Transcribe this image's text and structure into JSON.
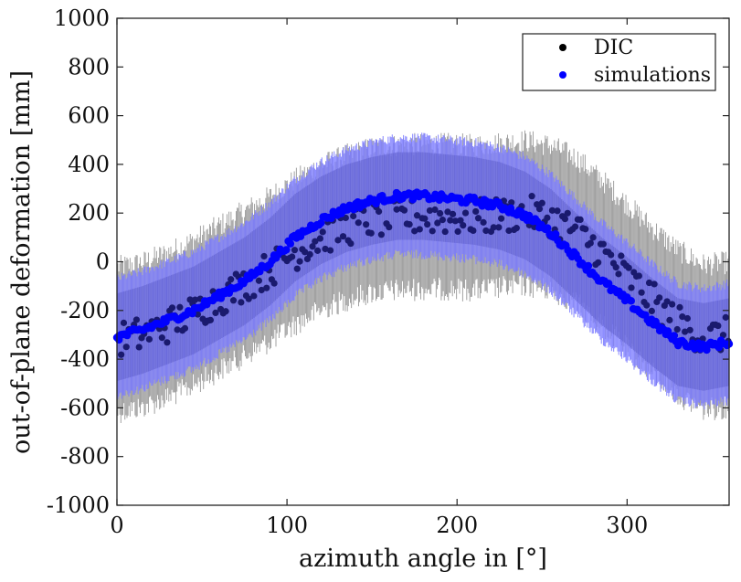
{
  "chart_data": {
    "type": "scatter",
    "title": "",
    "xlabel": "azimuth angle in [°]",
    "ylabel": "out-of-plane deformation [mm]",
    "xlim": [
      0,
      360
    ],
    "ylim": [
      -1000,
      1000
    ],
    "xticks": [
      "0",
      "100",
      "200",
      "300"
    ],
    "xtick_values": [
      0,
      100,
      200,
      300
    ],
    "yticks": [
      "1000",
      "800",
      "600",
      "400",
      "200",
      "0",
      "-200",
      "-400",
      "-600",
      "-800",
      "-1000"
    ],
    "ytick_values": [
      1000,
      800,
      600,
      400,
      200,
      0,
      -200,
      -400,
      -600,
      -800,
      -1000
    ],
    "grid": false,
    "legend_position": "top-right",
    "legend": [
      {
        "label": "DIC",
        "color": "#000000"
      },
      {
        "label": "simulations",
        "color": "#0000ff"
      }
    ],
    "series": [
      {
        "name": "DIC",
        "marker_color": "#1a1a6e",
        "band_color": "#8c8c8c",
        "band_halfwidth_approx": 320,
        "x": [
          0,
          15,
          30,
          45,
          60,
          75,
          90,
          105,
          120,
          135,
          150,
          165,
          180,
          195,
          210,
          225,
          240,
          255,
          270,
          285,
          300,
          315,
          330,
          345,
          360
        ],
        "y": [
          -320,
          -300,
          -260,
          -210,
          -150,
          -90,
          -30,
          40,
          100,
          140,
          170,
          180,
          185,
          185,
          180,
          190,
          200,
          180,
          130,
          40,
          -60,
          -160,
          -250,
          -310,
          -300
        ]
      },
      {
        "name": "simulations",
        "marker_color": "#0000ff",
        "band_color": "#7b7bff",
        "band_halfwidth_approx": 250,
        "x": [
          0,
          15,
          30,
          45,
          60,
          75,
          90,
          105,
          120,
          135,
          150,
          165,
          180,
          195,
          210,
          225,
          240,
          255,
          270,
          285,
          300,
          315,
          330,
          345,
          360
        ],
        "y": [
          -310,
          -280,
          -240,
          -200,
          -140,
          -80,
          0,
          100,
          170,
          220,
          250,
          270,
          270,
          260,
          250,
          230,
          190,
          120,
          20,
          -80,
          -160,
          -250,
          -330,
          -350,
          -330
        ]
      }
    ]
  }
}
